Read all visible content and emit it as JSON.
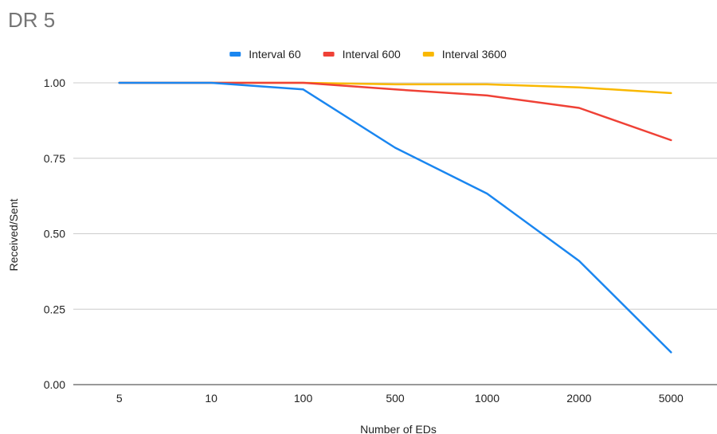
{
  "chart_data": {
    "type": "line",
    "title": "DR 5",
    "xlabel": "Number of EDs",
    "ylabel": "Received/Sent",
    "categories": [
      "5",
      "10",
      "100",
      "500",
      "1000",
      "2000",
      "5000"
    ],
    "ylim": [
      0,
      1
    ],
    "yticks": [
      "0.00",
      "0.25",
      "0.50",
      "0.75",
      "1.00"
    ],
    "grid": true,
    "legend_position": "top",
    "series": [
      {
        "name": "Interval 60",
        "color": "#1a86f0",
        "values": [
          1.0,
          1.0,
          0.978,
          0.785,
          0.633,
          0.41,
          0.107
        ]
      },
      {
        "name": "Interval 600",
        "color": "#ef4136",
        "values": [
          1.0,
          1.0,
          1.0,
          0.978,
          0.958,
          0.917,
          0.81
        ]
      },
      {
        "name": "Interval 3600",
        "color": "#f9b800",
        "values": [
          1.0,
          1.0,
          1.0,
          0.995,
          0.995,
          0.985,
          0.966
        ]
      }
    ]
  }
}
